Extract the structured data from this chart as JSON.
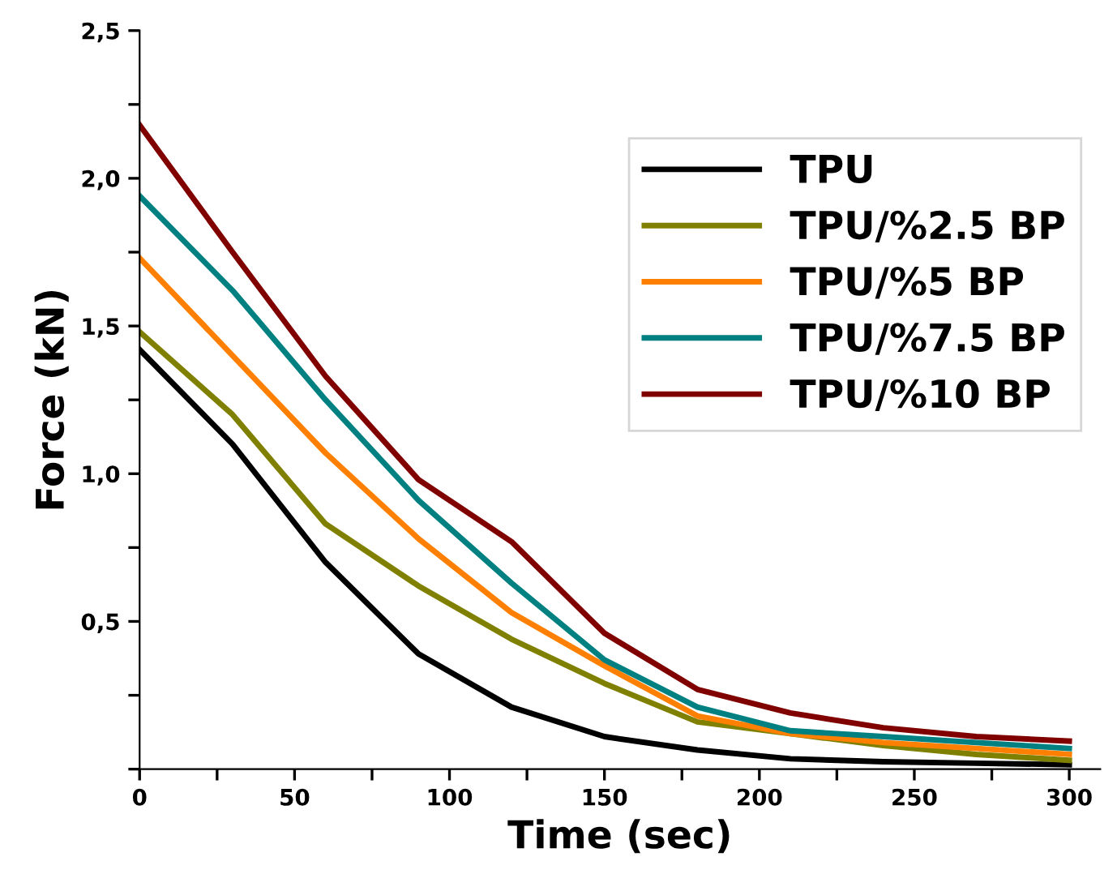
{
  "chart_data": {
    "type": "line",
    "xlabel": "Time (sec)",
    "ylabel": "Force (kN)",
    "x": [
      0,
      30,
      60,
      90,
      120,
      150,
      180,
      210,
      240,
      270,
      300
    ],
    "series": [
      {
        "name": "TPU",
        "color": "#000000",
        "values": [
          1.42,
          1.1,
          0.7,
          0.39,
          0.21,
          0.11,
          0.065,
          0.035,
          0.025,
          0.02,
          0.015
        ]
      },
      {
        "name": "TPU/%2.5 BP",
        "color": "#808000",
        "values": [
          1.48,
          1.2,
          0.83,
          0.62,
          0.44,
          0.29,
          0.16,
          0.12,
          0.08,
          0.05,
          0.03
        ]
      },
      {
        "name": "TPU/%5 BP",
        "color": "#ff8000",
        "values": [
          1.73,
          1.4,
          1.07,
          0.78,
          0.53,
          0.35,
          0.18,
          0.12,
          0.09,
          0.07,
          0.05
        ]
      },
      {
        "name": "TPU/%7.5 BP",
        "color": "#008080",
        "values": [
          1.94,
          1.62,
          1.25,
          0.91,
          0.63,
          0.37,
          0.21,
          0.13,
          0.11,
          0.09,
          0.07
        ]
      },
      {
        "name": "TPU/%10 BP",
        "color": "#800000",
        "values": [
          2.18,
          1.75,
          1.33,
          0.98,
          0.77,
          0.46,
          0.27,
          0.19,
          0.14,
          0.11,
          0.095
        ]
      }
    ],
    "xlim": [
      0,
      310
    ],
    "ylim": [
      0,
      2.5
    ],
    "xticks": [
      {
        "value": 0,
        "label": "0"
      },
      {
        "value": 25,
        "label": null
      },
      {
        "value": 50,
        "label": "50"
      },
      {
        "value": 75,
        "label": null
      },
      {
        "value": 100,
        "label": "100"
      },
      {
        "value": 125,
        "label": null
      },
      {
        "value": 150,
        "label": "150"
      },
      {
        "value": 175,
        "label": null
      },
      {
        "value": 200,
        "label": "200"
      },
      {
        "value": 225,
        "label": null
      },
      {
        "value": 250,
        "label": "250"
      },
      {
        "value": 275,
        "label": null
      },
      {
        "value": 300,
        "label": "300"
      }
    ],
    "yticks": [
      {
        "value": 0,
        "label": null
      },
      {
        "value": 0.25,
        "label": null
      },
      {
        "value": 0.5,
        "label": "0,5"
      },
      {
        "value": 0.75,
        "label": null
      },
      {
        "value": 1.0,
        "label": "1,0"
      },
      {
        "value": 1.25,
        "label": null
      },
      {
        "value": 1.5,
        "label": "1,5"
      },
      {
        "value": 1.75,
        "label": null
      },
      {
        "value": 2.0,
        "label": "2,0"
      },
      {
        "value": 2.25,
        "label": null
      },
      {
        "value": 2.5,
        "label": "2,5"
      }
    ],
    "legend": "top right",
    "grid": false,
    "marker": "none",
    "line_style": "solid"
  }
}
